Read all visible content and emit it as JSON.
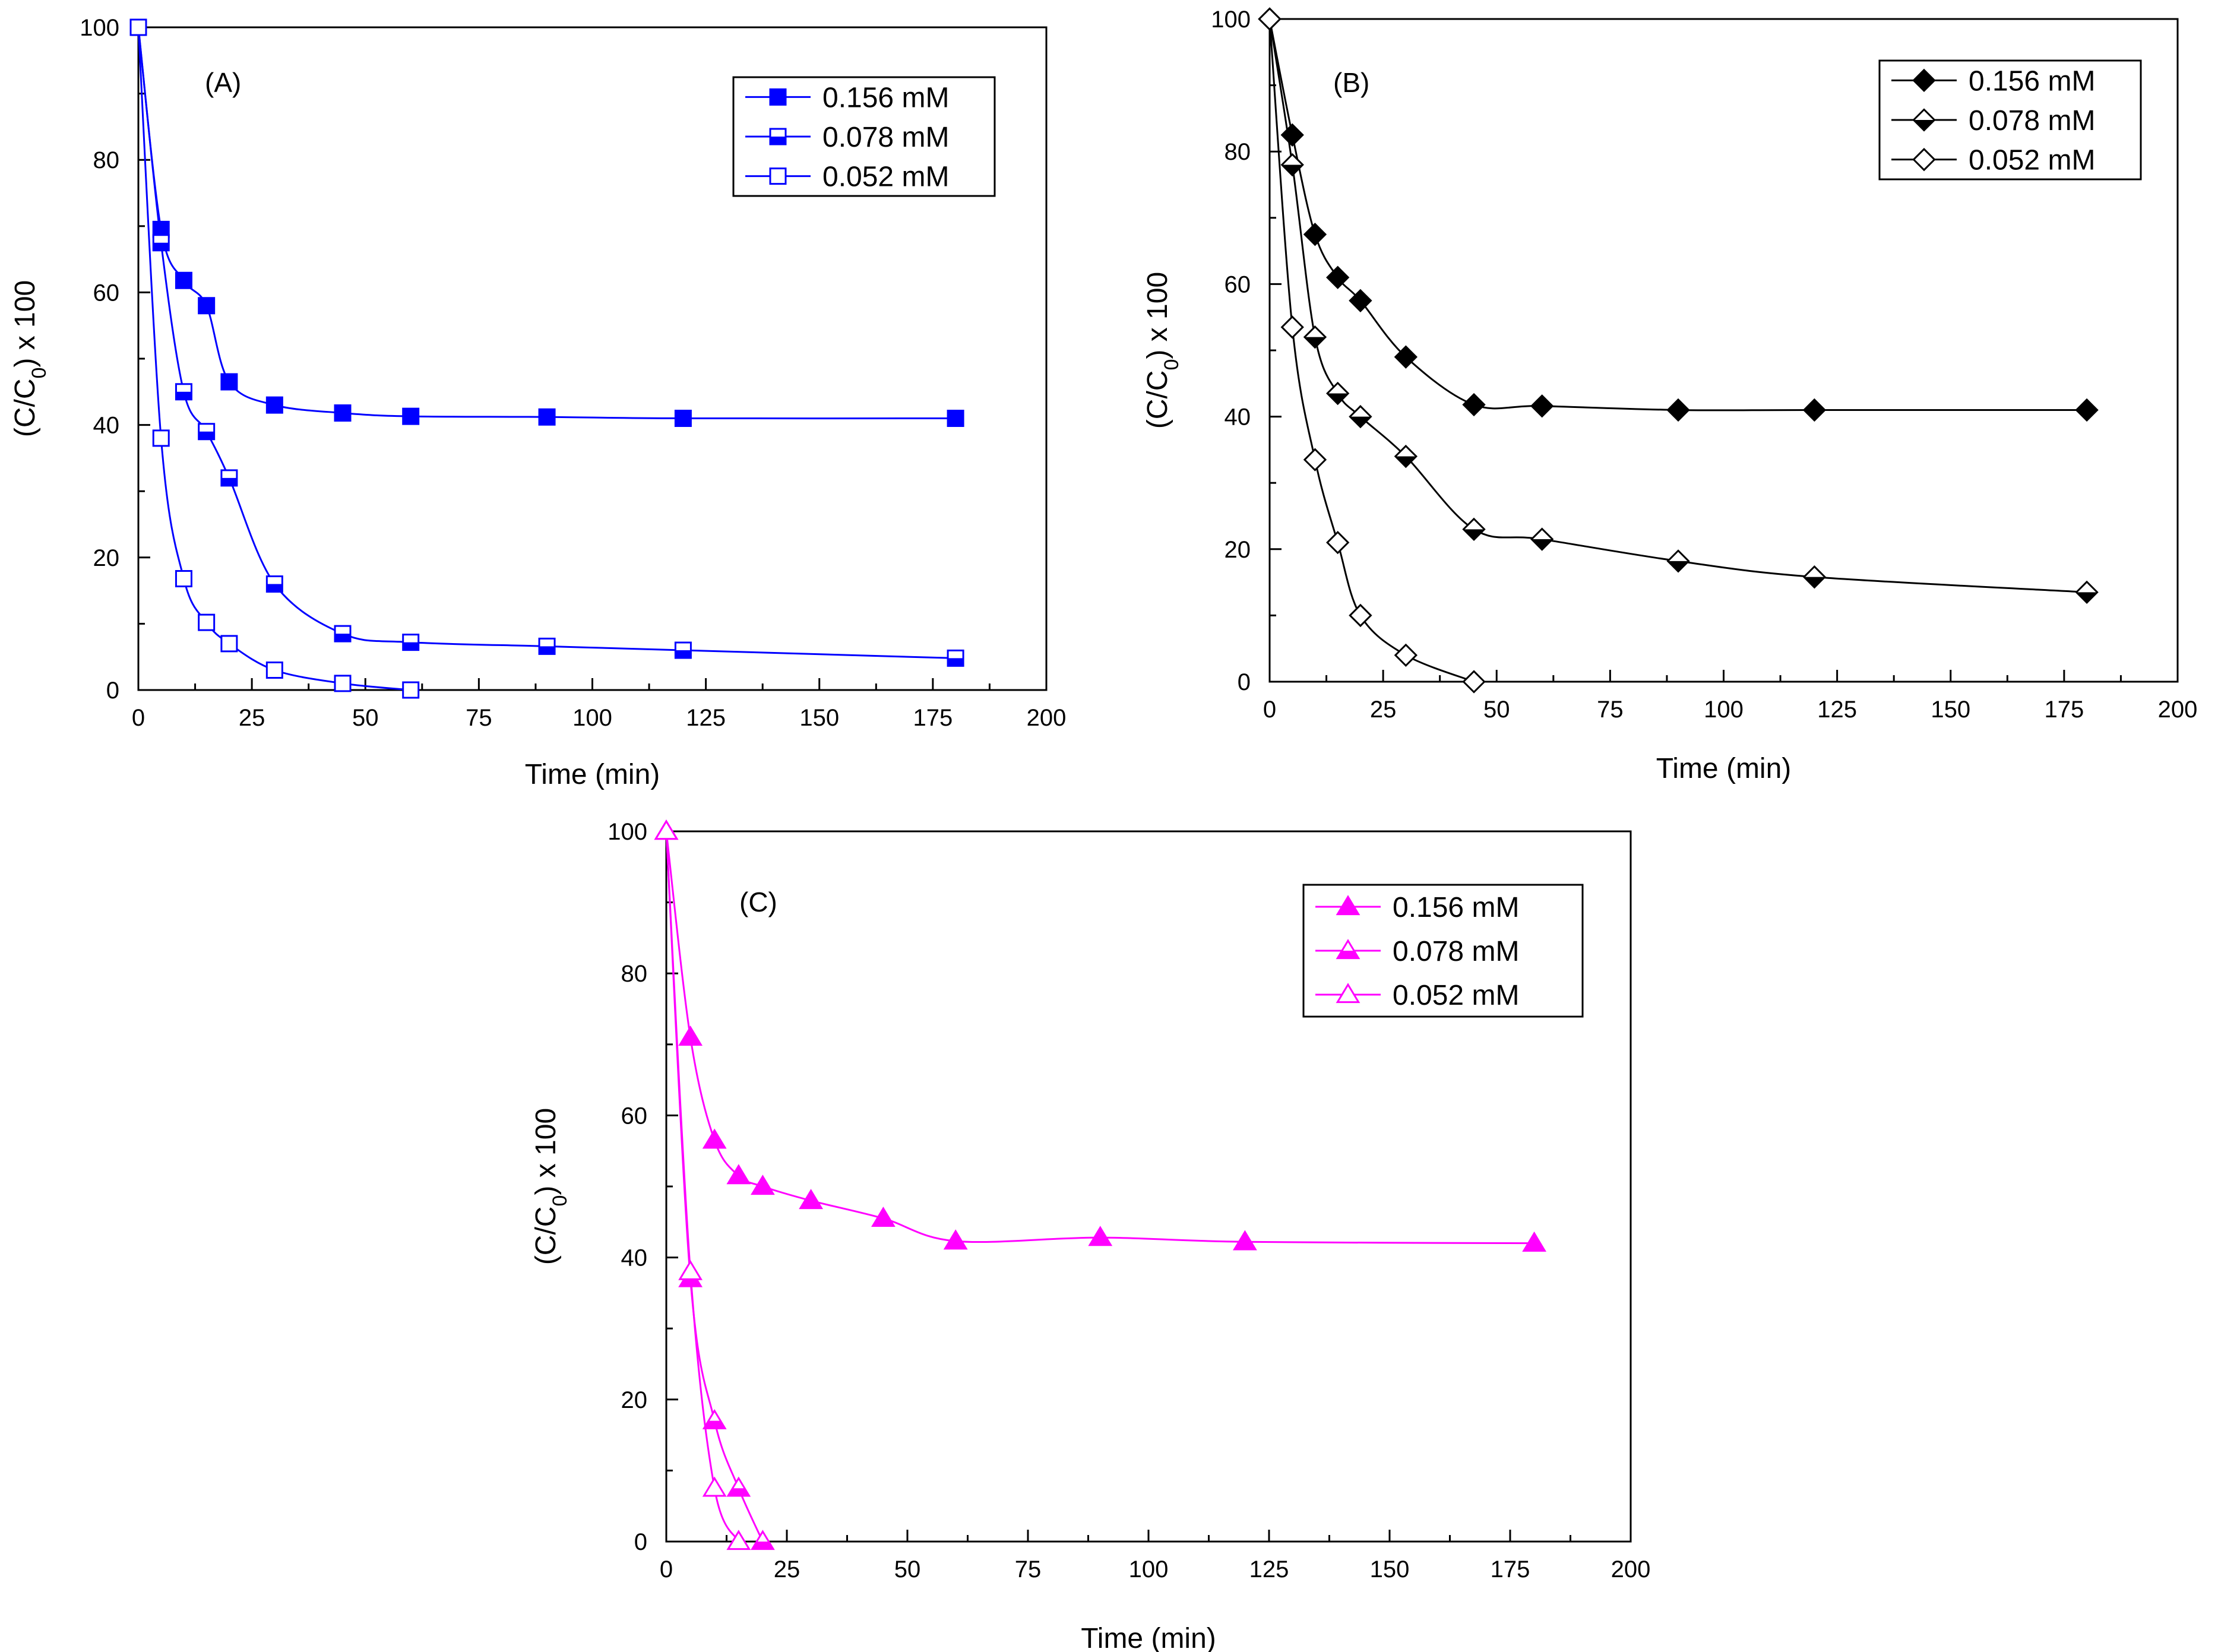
{
  "figure": {
    "description_free": true,
    "y_label_main": "(C/C",
    "y_label_sub": "0",
    "y_label_tail": ") x 100"
  },
  "chart_data": [
    {
      "id": "A",
      "type": "line",
      "panel_label": "(A)",
      "xlabel": "Time (min)",
      "ylabel": "(C/C0) x 100",
      "xlim": [
        0,
        200
      ],
      "ylim": [
        0,
        100
      ],
      "x_ticks": [
        0,
        25,
        50,
        75,
        100,
        125,
        150,
        175,
        200
      ],
      "y_ticks": [
        0,
        20,
        40,
        60,
        80,
        100
      ],
      "color": "#0000ff",
      "marker": "square",
      "legend_position": "top-right",
      "series": [
        {
          "name": "0.156 mM",
          "fill": "full",
          "x": [
            0,
            5,
            10,
            15,
            20,
            30,
            45,
            60,
            90,
            120,
            180
          ],
          "y": [
            100,
            69.5,
            61.8,
            58,
            46.5,
            43,
            41.8,
            41.3,
            41.2,
            41,
            41
          ]
        },
        {
          "name": "0.078 mM",
          "fill": "half",
          "x": [
            0,
            5,
            10,
            15,
            20,
            30,
            45,
            60,
            90,
            120,
            180
          ],
          "y": [
            100,
            67.5,
            45,
            39,
            32,
            16,
            8.5,
            7.2,
            6.6,
            6,
            4.8
          ]
        },
        {
          "name": "0.052 mM",
          "fill": "open",
          "x": [
            0,
            5,
            10,
            15,
            20,
            30,
            45,
            60
          ],
          "y": [
            100,
            38,
            16.8,
            10.2,
            7,
            3,
            1,
            0
          ]
        }
      ]
    },
    {
      "id": "B",
      "type": "line",
      "panel_label": "(B)",
      "xlabel": "Time (min)",
      "ylabel": "(C/C0) x 100",
      "xlim": [
        0,
        200
      ],
      "ylim": [
        0,
        100
      ],
      "x_ticks": [
        0,
        25,
        50,
        75,
        100,
        125,
        150,
        175,
        200
      ],
      "y_ticks": [
        0,
        20,
        40,
        60,
        80,
        100
      ],
      "color": "#000000",
      "marker": "diamond",
      "legend_position": "top-right",
      "series": [
        {
          "name": "0.156 mM",
          "fill": "full",
          "x": [
            0,
            5,
            10,
            15,
            20,
            30,
            45,
            60,
            90,
            120,
            180
          ],
          "y": [
            100,
            82.5,
            67.5,
            61,
            57.5,
            49,
            41.8,
            41.6,
            41,
            41,
            41
          ]
        },
        {
          "name": "0.078 mM",
          "fill": "half",
          "x": [
            0,
            5,
            10,
            15,
            20,
            30,
            45,
            60,
            90,
            120,
            180
          ],
          "y": [
            100,
            78,
            52,
            43.5,
            40,
            34,
            23,
            21.5,
            18.2,
            15.8,
            13.5
          ]
        },
        {
          "name": "0.052 mM",
          "fill": "open",
          "x": [
            0,
            5,
            10,
            15,
            20,
            30,
            45
          ],
          "y": [
            100,
            53.5,
            33.5,
            21,
            10,
            4,
            0
          ]
        }
      ]
    },
    {
      "id": "C",
      "type": "line",
      "panel_label": "(C)",
      "xlabel": "Time (min)",
      "ylabel": "(C/C0) x 100",
      "xlim": [
        0,
        200
      ],
      "ylim": [
        0,
        100
      ],
      "x_ticks": [
        0,
        25,
        50,
        75,
        100,
        125,
        150,
        175,
        200
      ],
      "y_ticks": [
        0,
        20,
        40,
        60,
        80,
        100
      ],
      "color": "#ff00ff",
      "marker": "triangle",
      "legend_position": "top-right",
      "series": [
        {
          "name": "0.156 mM",
          "fill": "full",
          "x": [
            0,
            5,
            10,
            15,
            20,
            30,
            45,
            60,
            90,
            120,
            180
          ],
          "y": [
            100,
            71,
            56.5,
            51.5,
            50,
            48,
            45.5,
            42.3,
            42.8,
            42.2,
            42
          ]
        },
        {
          "name": "0.078 mM",
          "fill": "half",
          "x": [
            0,
            5,
            10,
            15,
            20
          ],
          "y": [
            100,
            37,
            17,
            7.5,
            0
          ]
        },
        {
          "name": "0.052 mM",
          "fill": "open",
          "x": [
            0,
            5,
            10,
            15
          ],
          "y": [
            100,
            38,
            7.5,
            0
          ]
        }
      ]
    }
  ]
}
